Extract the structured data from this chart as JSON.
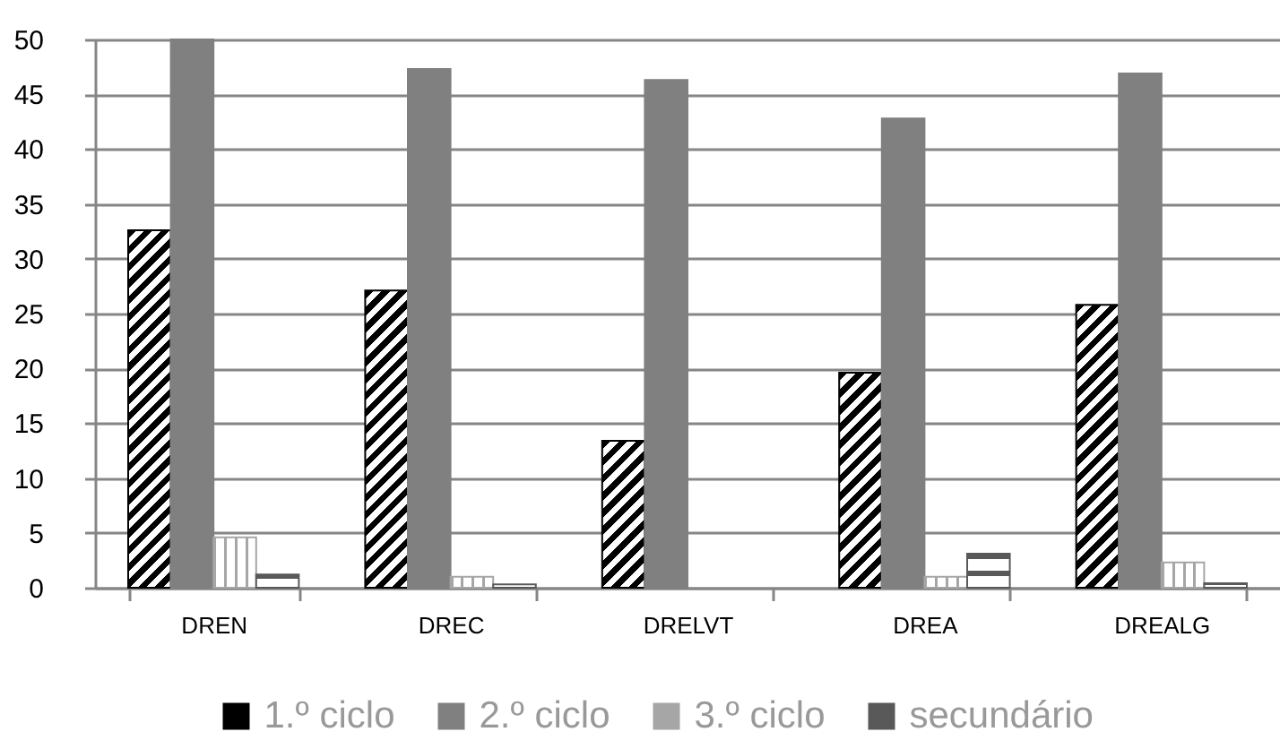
{
  "chart_data": {
    "type": "bar",
    "categories": [
      "DREN",
      "DREC",
      "DRELVT",
      "DREA",
      "DREALG"
    ],
    "series": [
      {
        "name": "1.º ciclo",
        "color": "#000000",
        "values": [
          32.6,
          27.1,
          13.4,
          19.6,
          25.8
        ]
      },
      {
        "name": "2.º ciclo",
        "color": "#808080",
        "values": [
          50,
          47.3,
          46.3,
          42.8,
          46.9
        ]
      },
      {
        "name": "3.º ciclo",
        "color": "#a6a6a6",
        "values": [
          4.6,
          1.0,
          null,
          1.0,
          2.3
        ]
      },
      {
        "name": "secundário",
        "color": "#595959",
        "values": [
          1.2,
          0.3,
          null,
          3.1,
          0.4
        ]
      }
    ],
    "ylim": [
      0,
      50
    ],
    "yticks": [
      0,
      5,
      10,
      15,
      20,
      25,
      30,
      35,
      40,
      45,
      50
    ],
    "grid": "y",
    "legend": "bottom"
  }
}
